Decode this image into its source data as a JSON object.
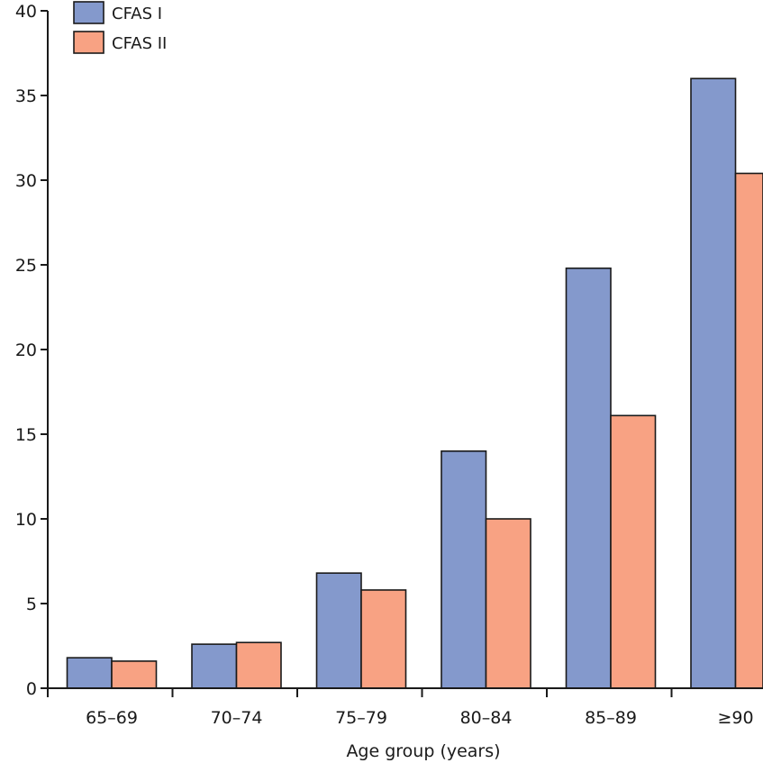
{
  "chart_data": {
    "type": "bar",
    "title": "",
    "xlabel": "Age group (years)",
    "ylabel": "",
    "categories": [
      "65–69",
      "70–74",
      "75–79",
      "80–84",
      "85–89",
      "≥90"
    ],
    "series": [
      {
        "name": "CFAS I",
        "values": [
          1.8,
          2.6,
          6.8,
          14.0,
          24.8,
          36.0
        ],
        "color": "#8499cc"
      },
      {
        "name": "CFAS II",
        "values": [
          1.6,
          2.7,
          5.8,
          10.0,
          16.1,
          30.4
        ],
        "color": "#f8a283"
      }
    ],
    "ylim": [
      0,
      40
    ],
    "yticks": [
      0,
      5,
      10,
      15,
      20,
      25,
      30,
      35,
      40
    ],
    "grid": false,
    "legend_position": "top-left"
  }
}
